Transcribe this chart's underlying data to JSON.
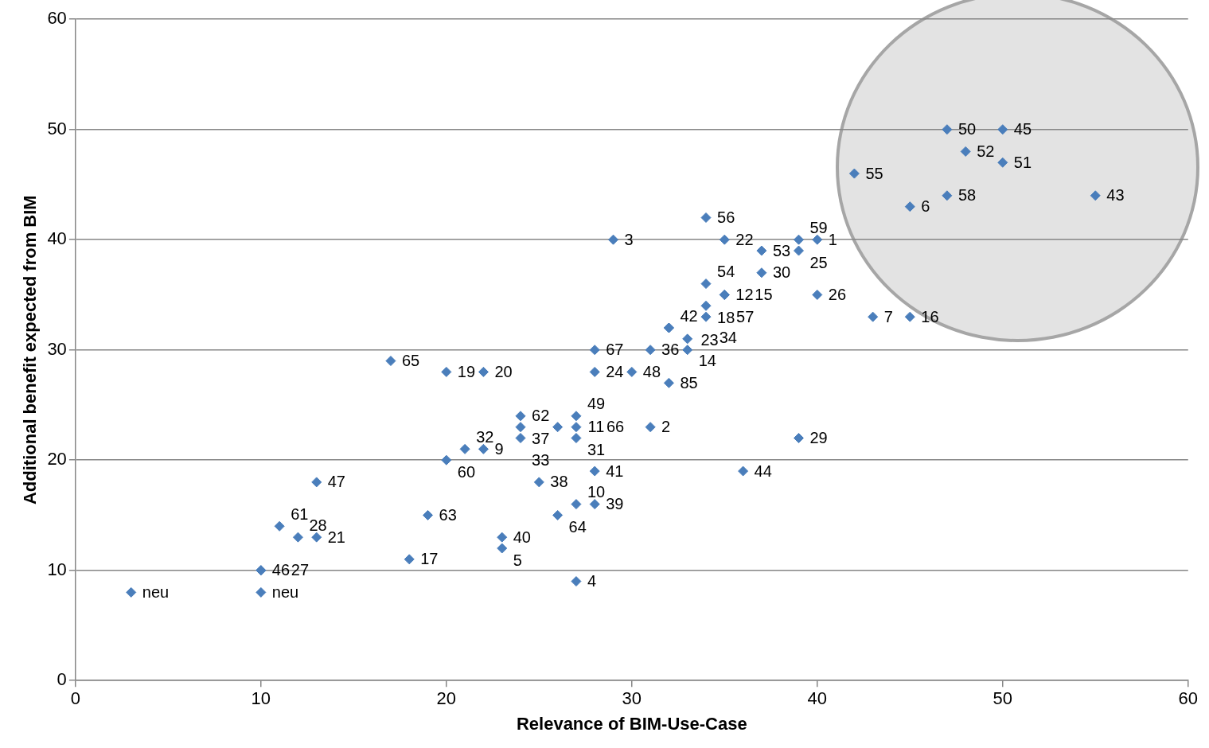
{
  "chart_data": {
    "type": "scatter",
    "xlabel": "Relevance of BIM-Use-Case",
    "ylabel": "Additional benefit expected from BIM",
    "x": [
      3,
      10,
      10,
      10,
      11,
      12,
      13,
      13,
      17,
      18,
      19,
      20,
      22,
      20,
      21,
      22,
      23,
      23,
      24,
      24,
      24,
      25,
      26,
      27,
      27,
      27,
      26,
      27,
      28,
      27,
      28,
      28,
      28,
      30,
      29,
      31,
      31,
      32,
      32,
      32,
      33,
      33,
      34,
      35,
      34,
      35,
      35,
      34,
      34,
      37,
      37,
      39,
      40,
      39,
      40,
      43,
      45,
      36,
      39,
      42,
      45,
      47,
      47,
      48,
      50,
      50,
      55
    ],
    "values": [
      8,
      8,
      10,
      10,
      14,
      13,
      13,
      18,
      29,
      11,
      15,
      28,
      28,
      20,
      21,
      21,
      13,
      12,
      24,
      23,
      22,
      18,
      23,
      24,
      23,
      22,
      15,
      16,
      16,
      9,
      19,
      30,
      28,
      28,
      40,
      30,
      23,
      27,
      32,
      32,
      31,
      30,
      42,
      40,
      36,
      35,
      35,
      34,
      33,
      39,
      37,
      40,
      40,
      39,
      35,
      33,
      33,
      19,
      22,
      46,
      43,
      44,
      50,
      48,
      50,
      47,
      44
    ],
    "annotations": [
      {
        "text": "neu",
        "x": 3,
        "y": 8
      },
      {
        "text": "neu",
        "x": 10,
        "y": 8
      },
      {
        "text": "46",
        "x": 10,
        "y": 10
      },
      {
        "text": "27",
        "x": 10,
        "y": 10
      },
      {
        "text": "61",
        "x": 11,
        "y": 14
      },
      {
        "text": "28",
        "x": 12,
        "y": 13
      },
      {
        "text": "21",
        "x": 13,
        "y": 13
      },
      {
        "text": "47",
        "x": 13,
        "y": 18
      },
      {
        "text": "65",
        "x": 17,
        "y": 29
      },
      {
        "text": "17",
        "x": 18,
        "y": 11
      },
      {
        "text": "63",
        "x": 19,
        "y": 15
      },
      {
        "text": "19",
        "x": 20,
        "y": 28
      },
      {
        "text": "20",
        "x": 22,
        "y": 28
      },
      {
        "text": "60",
        "x": 20,
        "y": 20
      },
      {
        "text": "32",
        "x": 21,
        "y": 21
      },
      {
        "text": "9",
        "x": 22,
        "y": 21
      },
      {
        "text": "40",
        "x": 23,
        "y": 13
      },
      {
        "text": "5",
        "x": 23,
        "y": 12
      },
      {
        "text": "62",
        "x": 24,
        "y": 24
      },
      {
        "text": "37",
        "x": 24,
        "y": 23
      },
      {
        "text": "33",
        "x": 24,
        "y": 22
      },
      {
        "text": "38",
        "x": 25,
        "y": 18
      },
      {
        "text": "11",
        "x": 26,
        "y": 23
      },
      {
        "text": "49",
        "x": 27,
        "y": 24
      },
      {
        "text": "66",
        "x": 27,
        "y": 23
      },
      {
        "text": "31",
        "x": 27,
        "y": 22
      },
      {
        "text": "64",
        "x": 26,
        "y": 15
      },
      {
        "text": "10",
        "x": 27,
        "y": 16
      },
      {
        "text": "39",
        "x": 28,
        "y": 16
      },
      {
        "text": "4",
        "x": 27,
        "y": 9
      },
      {
        "text": "41",
        "x": 28,
        "y": 19
      },
      {
        "text": "67",
        "x": 28,
        "y": 30
      },
      {
        "text": "24",
        "x": 28,
        "y": 28
      },
      {
        "text": "48",
        "x": 30,
        "y": 28
      },
      {
        "text": "3",
        "x": 29,
        "y": 40
      },
      {
        "text": "36",
        "x": 31,
        "y": 30
      },
      {
        "text": "2",
        "x": 31,
        "y": 23
      },
      {
        "text": "85",
        "x": 32,
        "y": 27
      },
      {
        "text": "42",
        "x": 32,
        "y": 32
      },
      {
        "text": "23",
        "x": 32,
        "y": 32
      },
      {
        "text": "14",
        "x": 33,
        "y": 31
      },
      {
        "text": "34",
        "x": 33,
        "y": 30
      },
      {
        "text": "56",
        "x": 34,
        "y": 42
      },
      {
        "text": "22",
        "x": 35,
        "y": 40
      },
      {
        "text": "54",
        "x": 34,
        "y": 36
      },
      {
        "text": "12",
        "x": 35,
        "y": 35
      },
      {
        "text": "15",
        "x": 35,
        "y": 35
      },
      {
        "text": "18",
        "x": 34,
        "y": 34
      },
      {
        "text": "57",
        "x": 34,
        "y": 33
      },
      {
        "text": "53",
        "x": 37,
        "y": 39
      },
      {
        "text": "30",
        "x": 37,
        "y": 37
      },
      {
        "text": "59",
        "x": 39,
        "y": 40
      },
      {
        "text": "1",
        "x": 40,
        "y": 40
      },
      {
        "text": "25",
        "x": 39,
        "y": 39
      },
      {
        "text": "26",
        "x": 40,
        "y": 35
      },
      {
        "text": "7",
        "x": 43,
        "y": 33
      },
      {
        "text": "16",
        "x": 45,
        "y": 33
      },
      {
        "text": "44",
        "x": 36,
        "y": 19
      },
      {
        "text": "29",
        "x": 39,
        "y": 22
      },
      {
        "text": "55",
        "x": 42,
        "y": 46
      },
      {
        "text": "6",
        "x": 45,
        "y": 43
      },
      {
        "text": "58",
        "x": 47,
        "y": 44
      },
      {
        "text": "50",
        "x": 47,
        "y": 50
      },
      {
        "text": "52",
        "x": 48,
        "y": 48
      },
      {
        "text": "45",
        "x": 50,
        "y": 50
      },
      {
        "text": "51",
        "x": 50,
        "y": 47
      },
      {
        "text": "43",
        "x": 55,
        "y": 44
      }
    ],
    "color": "#4a7ebb",
    "marker": "diamond",
    "grid": "y",
    "xlim": [
      0,
      60
    ],
    "xticks": [
      0,
      10,
      20,
      30,
      40,
      50,
      60
    ],
    "ylim": [
      0,
      60
    ],
    "yticks": [
      0,
      10,
      20,
      30,
      40,
      50,
      60
    ]
  }
}
